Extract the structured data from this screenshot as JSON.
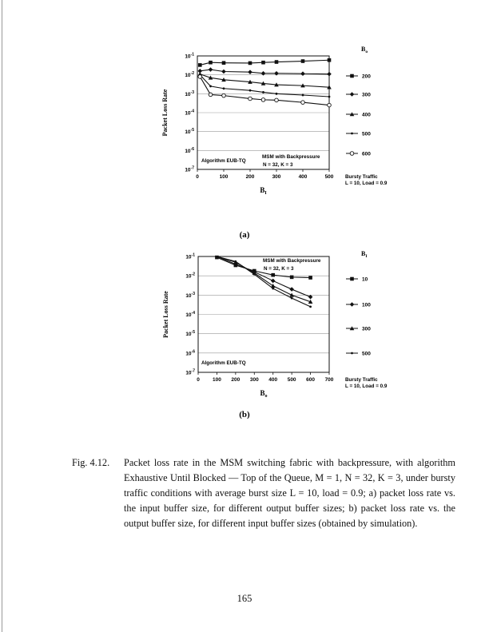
{
  "chart_data": [
    {
      "type": "line",
      "panel_label": "(a)",
      "xlabel": "B",
      "xlabel_sub": "I",
      "ylabel": "Packet Loss Rate",
      "xlim": [
        0,
        500
      ],
      "ylim": [
        1e-07,
        0.1
      ],
      "yscale": "log",
      "grid": "horizontal",
      "x_ticks": [
        0,
        100,
        200,
        300,
        400,
        500
      ],
      "y_ticks": [
        "10-1",
        "10-2",
        "10-3",
        "10-4",
        "10-5",
        "10-6",
        "10-7"
      ],
      "legend_title": "B",
      "legend_title_sub": "o",
      "legend_placement": "right",
      "annotations": [
        "Algorithm EUB-TQ",
        "MSM with Backpressure",
        "N = 32, K = 3"
      ],
      "note": [
        "Bursty Traffic",
        "L = 10, Load = 0.9"
      ],
      "x": [
        10,
        50,
        100,
        200,
        250,
        300,
        400,
        500
      ],
      "series": [
        {
          "name": "200",
          "marker": "filled-square",
          "values": [
            0.033,
            0.045,
            0.043,
            0.042,
            0.045,
            0.048,
            0.053,
            0.06
          ]
        },
        {
          "name": "300",
          "marker": "filled-diamond",
          "values": [
            0.016,
            0.019,
            0.015,
            0.014,
            0.012,
            0.012,
            0.0115,
            0.011
          ]
        },
        {
          "name": "400",
          "marker": "triangle",
          "values": [
            0.011,
            0.007,
            0.0055,
            0.0042,
            0.0035,
            0.003,
            0.0027,
            0.0022
          ]
        },
        {
          "name": "500",
          "marker": "plus",
          "values": [
            0.01,
            0.0025,
            0.0019,
            0.0015,
            0.0012,
            0.001,
            0.00085,
            0.0007
          ]
        },
        {
          "name": "600",
          "marker": "open-circle",
          "values": [
            0.008,
            0.0009,
            0.0008,
            0.00055,
            0.00048,
            0.00046,
            0.00035,
            0.00025
          ]
        }
      ]
    },
    {
      "type": "line",
      "panel_label": "(b)",
      "xlabel": "B",
      "xlabel_sub": "o",
      "ylabel": "Packet Loss Rate",
      "xlim": [
        0,
        700
      ],
      "ylim": [
        1e-07,
        0.1
      ],
      "yscale": "log",
      "grid": "horizontal",
      "x_ticks": [
        0,
        100,
        200,
        300,
        400,
        500,
        600,
        700
      ],
      "y_ticks": [
        "10-1",
        "10-2",
        "10-3",
        "10-4",
        "10-5",
        "10-6",
        "10-7"
      ],
      "legend_title": "B",
      "legend_title_sub": "I",
      "legend_placement": "right",
      "annotations": [
        "Algorithm EUB-TQ",
        "MSM with Backpressure",
        "N = 32, K = 3"
      ],
      "note": [
        "Bursty Traffic",
        "L = 10, Load = 0.9"
      ],
      "x": [
        100,
        200,
        300,
        400,
        500,
        600
      ],
      "series": [
        {
          "name": "10",
          "marker": "filled-square",
          "values": [
            0.09,
            0.035,
            0.018,
            0.011,
            0.0085,
            0.008
          ]
        },
        {
          "name": "100",
          "marker": "filled-diamond",
          "values": [
            0.1,
            0.04,
            0.016,
            0.0055,
            0.002,
            0.0008
          ]
        },
        {
          "name": "300",
          "marker": "triangle",
          "values": [
            0.1,
            0.05,
            0.014,
            0.003,
            0.001,
            0.00045
          ]
        },
        {
          "name": "500",
          "marker": "plus",
          "values": [
            0.1,
            0.055,
            0.012,
            0.0022,
            0.0007,
            0.00025
          ]
        }
      ]
    }
  ],
  "caption": {
    "label": "Fig. 4.12.",
    "text": "Packet loss rate in the MSM switching fabric with backpressure, with algorithm Exhaustive Until Blocked — Top of the Queue, M = 1, N = 32, K = 3, under bursty traffic conditions with average burst size L = 10, load = 0.9; a) packet loss rate vs. the input buffer size, for different output buffer sizes; b) packet loss rate vs. the output buffer size, for different input buffer sizes (obtained by simulation)."
  },
  "page_number": "165"
}
